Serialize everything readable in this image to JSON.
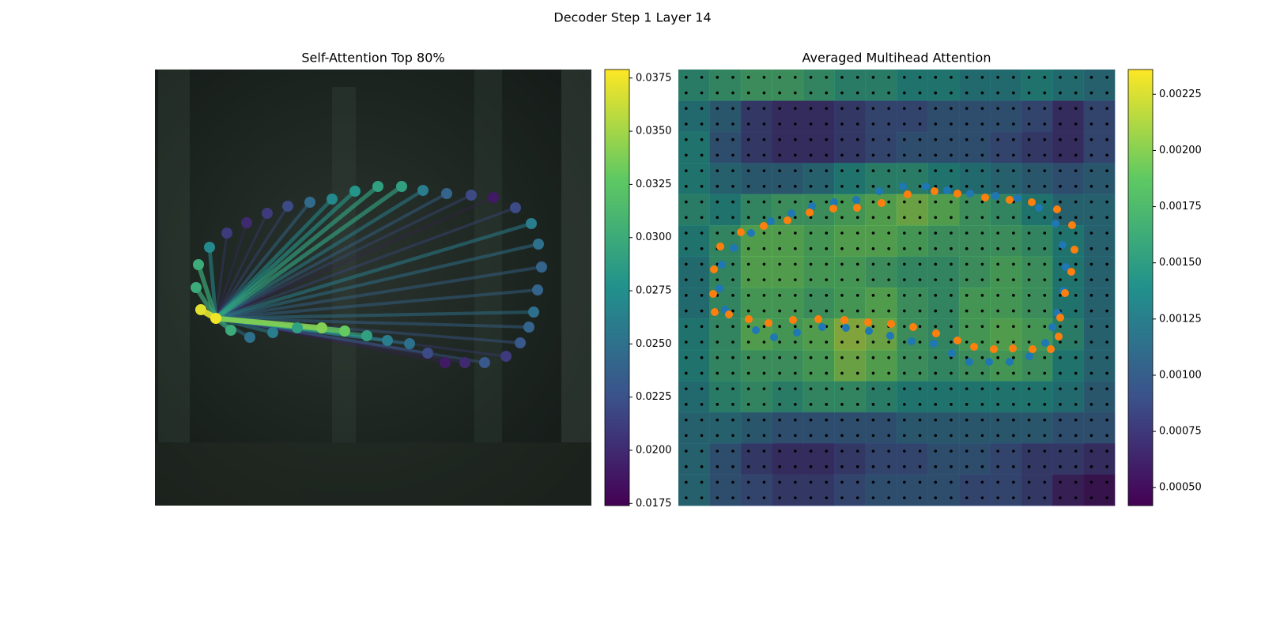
{
  "title": "Decoder Step 1 Layer 14",
  "chart_data": [
    {
      "type": "attention_graph",
      "title": "Self-Attention Top 80%",
      "xlim": [
        0,
        552
      ],
      "ylim": [
        0,
        552
      ],
      "y_inverted": true,
      "query": 1,
      "x": [
        58,
        77,
        52,
        55,
        69,
        91,
        116,
        142,
        168,
        196,
        224,
        253,
        282,
        312,
        339,
        369,
        400,
        428,
        456,
        476,
        485,
        489,
        484,
        479,
        473,
        462,
        444,
        417,
        392,
        367,
        345,
        322,
        294,
        268,
        240,
        211,
        180,
        149,
        120,
        96
      ],
      "y": [
        304,
        315,
        276,
        247,
        225,
        207,
        194,
        182,
        173,
        168,
        164,
        154,
        148,
        148,
        153,
        157,
        159,
        162,
        175,
        195,
        221,
        250,
        279,
        307,
        326,
        346,
        363,
        371,
        371,
        371,
        359,
        347,
        343,
        337,
        331,
        327,
        327,
        333,
        339,
        330
      ],
      "values": [
        0.037,
        0.0375,
        0.03,
        0.03,
        0.027,
        0.021,
        0.02,
        0.021,
        0.022,
        0.0245,
        0.027,
        0.028,
        0.029,
        0.029,
        0.026,
        0.024,
        0.022,
        0.019,
        0.022,
        0.026,
        0.025,
        0.024,
        0.024,
        0.025,
        0.024,
        0.023,
        0.021,
        0.023,
        0.02,
        0.019,
        0.022,
        0.025,
        0.026,
        0.029,
        0.033,
        0.034,
        0.029,
        0.026,
        0.025,
        0.03
      ],
      "clim": [
        0.0174,
        0.0379
      ],
      "cticks": [
        0.0175,
        {
          "value": 0.02,
          "label": "0.0200"
        },
        0.0225,
        {
          "value": 0.025,
          "label": "0.0250"
        },
        0.0275,
        {
          "value": 0.03,
          "label": "0.0300"
        },
        0.0325,
        {
          "value": 0.035,
          "label": "0.0350"
        },
        0.0375
      ],
      "colormap": "viridis"
    },
    {
      "type": "heatmap",
      "title": "Averaged Multihead Attention",
      "xlim": [
        0,
        552
      ],
      "ylim": [
        0,
        552
      ],
      "y_inverted": true,
      "z": [
        [
          0.0015,
          0.0016,
          0.0017,
          0.0017,
          0.0016,
          0.0015,
          0.0015,
          0.0014,
          0.0014,
          0.0013,
          0.0013,
          0.0014,
          0.0013,
          0.0012
        ],
        [
          0.0013,
          0.0011,
          0.0008,
          0.0007,
          0.0007,
          0.0008,
          0.0009,
          0.0009,
          0.001,
          0.001,
          0.001,
          0.0009,
          0.0007,
          0.0009
        ],
        [
          0.0014,
          0.001,
          0.0008,
          0.0007,
          0.0007,
          0.0008,
          0.0009,
          0.001,
          0.001,
          0.001,
          0.0009,
          0.0008,
          0.0007,
          0.0009
        ],
        [
          0.0014,
          0.0012,
          0.0011,
          0.0011,
          0.0012,
          0.0014,
          0.0015,
          0.0015,
          0.0014,
          0.0013,
          0.0012,
          0.0011,
          0.001,
          0.0011
        ],
        [
          0.0015,
          0.0014,
          0.0016,
          0.0017,
          0.0017,
          0.0018,
          0.0019,
          0.002,
          0.0019,
          0.0017,
          0.0016,
          0.0014,
          0.0012,
          0.0012
        ],
        [
          0.0014,
          0.0016,
          0.0019,
          0.0019,
          0.0018,
          0.0019,
          0.0019,
          0.0018,
          0.0017,
          0.0017,
          0.0017,
          0.0016,
          0.0014,
          0.0012
        ],
        [
          0.0013,
          0.0016,
          0.0019,
          0.0019,
          0.0018,
          0.0018,
          0.0017,
          0.0016,
          0.0016,
          0.0017,
          0.0018,
          0.0017,
          0.0014,
          0.0012
        ],
        [
          0.0013,
          0.0016,
          0.0018,
          0.0018,
          0.0017,
          0.0018,
          0.0019,
          0.0017,
          0.0016,
          0.0018,
          0.0018,
          0.0017,
          0.0014,
          0.0012
        ],
        [
          0.0014,
          0.0016,
          0.0019,
          0.0018,
          0.0019,
          0.0021,
          0.002,
          0.0017,
          0.0016,
          0.0018,
          0.0019,
          0.0018,
          0.0015,
          0.0012
        ],
        [
          0.0014,
          0.0016,
          0.0017,
          0.0017,
          0.0018,
          0.002,
          0.0019,
          0.0017,
          0.0016,
          0.0017,
          0.0018,
          0.0017,
          0.0014,
          0.0012
        ],
        [
          0.0013,
          0.0015,
          0.0016,
          0.0015,
          0.0016,
          0.0016,
          0.0015,
          0.0014,
          0.0014,
          0.0014,
          0.0014,
          0.0014,
          0.0013,
          0.0011
        ],
        [
          0.0012,
          0.0012,
          0.0011,
          0.001,
          0.001,
          0.001,
          0.001,
          0.0011,
          0.0011,
          0.0011,
          0.0011,
          0.0011,
          0.001,
          0.001
        ],
        [
          0.0012,
          0.001,
          0.0008,
          0.0007,
          0.0007,
          0.0008,
          0.0009,
          0.0009,
          0.001,
          0.001,
          0.0009,
          0.0008,
          0.0008,
          0.0007
        ],
        [
          0.0012,
          0.001,
          0.0009,
          0.0008,
          0.0008,
          0.0009,
          0.001,
          0.001,
          0.001,
          0.0009,
          0.0009,
          0.0008,
          0.0006,
          0.0005
        ]
      ],
      "clim": [
        0.00042,
        0.00236
      ],
      "cticks": [
        {
          "value": 0.0005,
          "label": "0.00050"
        },
        0.00075,
        {
          "value": 0.001,
          "label": "0.00100"
        },
        0.00125,
        {
          "value": 0.0015,
          "label": "0.00150"
        },
        0.00175,
        {
          "value": 0.002,
          "label": "0.00200"
        },
        0.00225
      ],
      "colormap": "viridis",
      "series": [
        {
          "color": "#1f77b4",
          "x": [
            52,
            55,
            70,
            92,
            117,
            143,
            169,
            197,
            225,
            254,
            284,
            313,
            340,
            369,
            401,
            429,
            456,
            477,
            486,
            490,
            487,
            479,
            473,
            464,
            444,
            419,
            393,
            368,
            346,
            323,
            295,
            268,
            241,
            212,
            182,
            150,
            121,
            98,
            59
          ],
          "y": [
            277,
            247,
            226,
            207,
            192,
            182,
            173,
            168,
            165,
            154,
            148,
            148,
            153,
            157,
            160,
            163,
            175,
            195,
            222,
            250,
            280,
            308,
            326,
            346,
            363,
            370,
            370,
            370,
            359,
            347,
            344,
            337,
            331,
            327,
            326,
            333,
            339,
            330,
            304
          ]
        },
        {
          "color": "#ff7f0e",
          "x": [
            44,
            45,
            53,
            79,
            108,
            138,
            166,
            196,
            226,
            257,
            290,
            324,
            353,
            388,
            419,
            447,
            479,
            498,
            501,
            497,
            489,
            483,
            481,
            471,
            448,
            423,
            399,
            374,
            353,
            326,
            297,
            269,
            240,
            210,
            177,
            145,
            114,
            89,
            64,
            46
          ],
          "y": [
            284,
            253,
            224,
            206,
            198,
            191,
            181,
            176,
            175,
            169,
            158,
            154,
            157,
            162,
            165,
            168,
            177,
            197,
            228,
            256,
            283,
            314,
            338,
            354,
            354,
            353,
            354,
            351,
            343,
            334,
            326,
            322,
            320,
            317,
            316,
            317,
            321,
            316,
            310,
            307
          ]
        }
      ]
    }
  ]
}
